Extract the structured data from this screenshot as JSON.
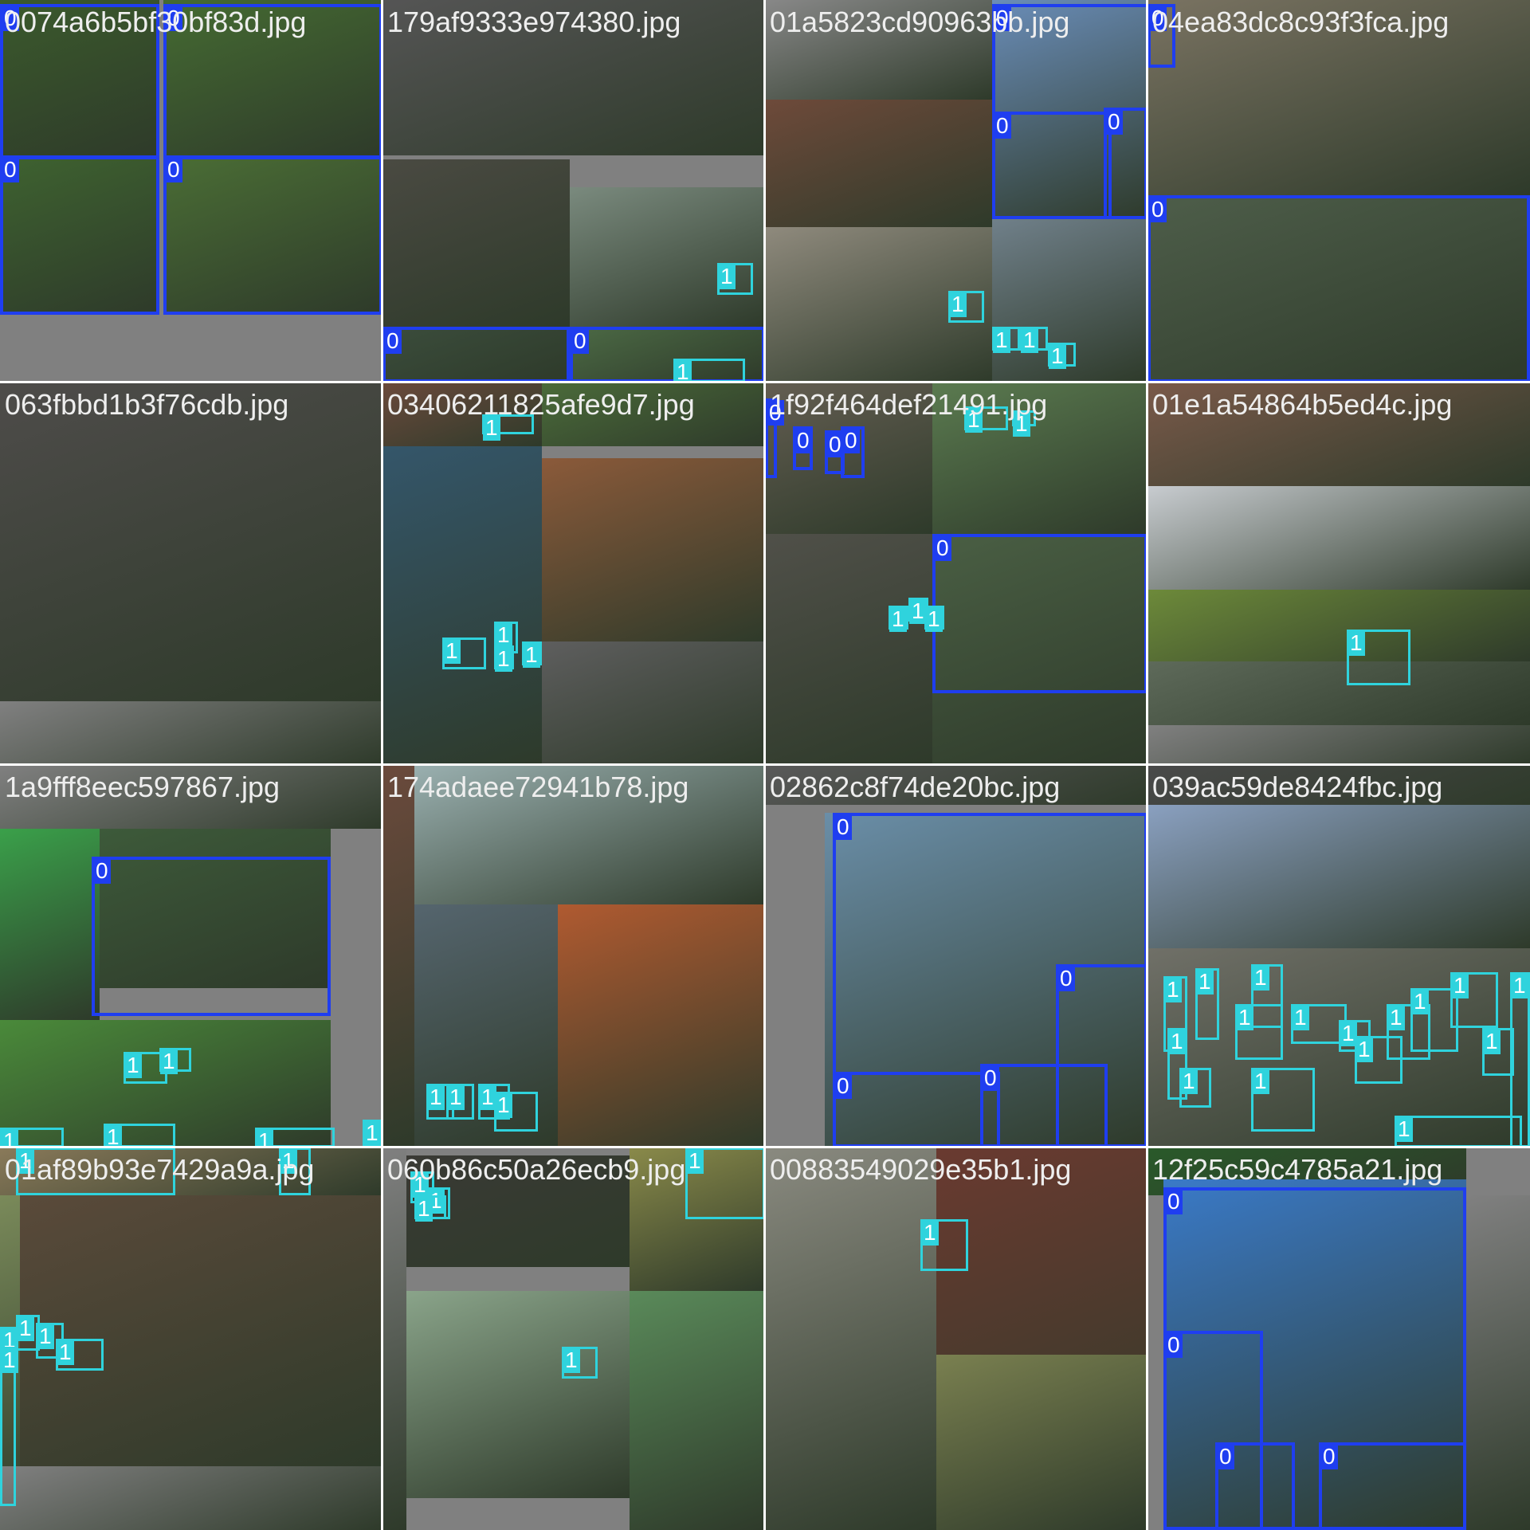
{
  "colors": {
    "class0": "#1f3ef0",
    "class1": "#2fd3dd",
    "padding": "#808080",
    "text": "#eeeeee"
  },
  "tiles": [
    {
      "filename": "0074a6b5bf30bf83d.jpg"
    },
    {
      "filename": "179af9333e974380.jpg"
    },
    {
      "filename": "01a5823cd90963bb.jpg"
    },
    {
      "filename": "04ea83dc8c93f3fca.jpg"
    },
    {
      "filename": "063fbbd1b3f76cdb.jpg"
    },
    {
      "filename": "03406211825afe9d7.jpg"
    },
    {
      "filename": "1f92f464def21491.jpg"
    },
    {
      "filename": "01e1a54864b5ed4c.jpg"
    },
    {
      "filename": "1a9fff8eec597867.jpg"
    },
    {
      "filename": "174adaee72941b78.jpg"
    },
    {
      "filename": "02862c8f74de20bc.jpg"
    },
    {
      "filename": "039ac59de8424fbc.jpg"
    },
    {
      "filename": "01af89b93e7429a9a.jpg"
    },
    {
      "filename": "060b86c50a26ecb9.jpg"
    },
    {
      "filename": "00883549029e35b1.jpg"
    },
    {
      "filename": "12f25c59c4785a21.jpg"
    }
  ],
  "box_label_0": "0",
  "box_label_1": "1",
  "pieces_icon": "photo-mosaic-piece"
}
